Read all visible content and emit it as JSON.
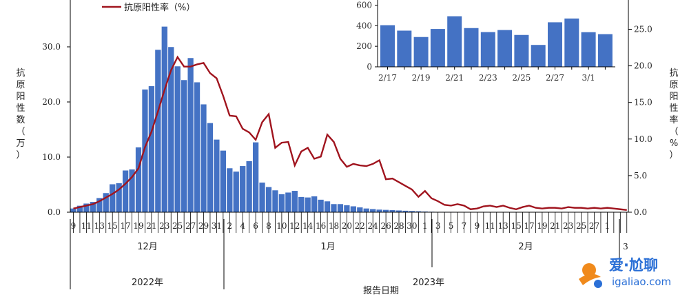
{
  "chart_data": [
    {
      "type": "bar+line",
      "legend": {
        "line_label": "抗原阳性率（%）",
        "position": "top-left"
      },
      "ylabel_left": "抗原阳性数（万）",
      "ylabel_right": "抗原阳性率（%）",
      "xlabel": "报告日期",
      "ylim_left": [
        0,
        38.5
      ],
      "ylim_right": [
        0,
        29
      ],
      "yticks_left": [
        "0.0",
        "10.0",
        "20.0",
        "30.0"
      ],
      "yticks_right": [
        "0.0",
        "5.0",
        "10.0",
        "15.0",
        "20.0",
        "25.0"
      ],
      "x_day_labels": [
        "9",
        "11",
        "13",
        "15",
        "17",
        "19",
        "21",
        "23",
        "25",
        "27",
        "29",
        "31",
        "2",
        "4",
        "6",
        "8",
        "10",
        "12",
        "14",
        "16",
        "18",
        "20",
        "22",
        "24",
        "26",
        "28",
        "30",
        "1",
        "3",
        "5",
        "7",
        "9",
        "11",
        "13",
        "15",
        "17",
        "19",
        "21",
        "23",
        "25",
        "27",
        "1",
        "3"
      ],
      "month_labels": [
        "12月",
        "1月",
        "2月"
      ],
      "year_labels": [
        "2022年",
        "2023年"
      ],
      "bar_color": "#4472C4",
      "line_color": "#A0141E",
      "bars": [
        {
          "date": "2022-12-09",
          "value": 0.7
        },
        {
          "date": "2022-12-10",
          "value": 1.2
        },
        {
          "date": "2022-12-11",
          "value": 1.6
        },
        {
          "date": "2022-12-12",
          "value": 1.9
        },
        {
          "date": "2022-12-13",
          "value": 2.6
        },
        {
          "date": "2022-12-14",
          "value": 3.5
        },
        {
          "date": "2022-12-15",
          "value": 5.1
        },
        {
          "date": "2022-12-16",
          "value": 5.3
        },
        {
          "date": "2022-12-17",
          "value": 7.6
        },
        {
          "date": "2022-12-18",
          "value": 7.8
        },
        {
          "date": "2022-12-19",
          "value": 11.8
        },
        {
          "date": "2022-12-20",
          "value": 22.3
        },
        {
          "date": "2022-12-21",
          "value": 22.9
        },
        {
          "date": "2022-12-22",
          "value": 29.5
        },
        {
          "date": "2022-12-23",
          "value": 33.7
        },
        {
          "date": "2022-12-24",
          "value": 30.0
        },
        {
          "date": "2022-12-25",
          "value": 26.5
        },
        {
          "date": "2022-12-26",
          "value": 24.0
        },
        {
          "date": "2022-12-27",
          "value": 28.0
        },
        {
          "date": "2022-12-28",
          "value": 23.6
        },
        {
          "date": "2022-12-29",
          "value": 19.6
        },
        {
          "date": "2022-12-30",
          "value": 16.2
        },
        {
          "date": "2022-12-31",
          "value": 13.2
        },
        {
          "date": "2023-01-01",
          "value": 11.2
        },
        {
          "date": "2023-01-02",
          "value": 8.0
        },
        {
          "date": "2023-01-03",
          "value": 7.4
        },
        {
          "date": "2023-01-04",
          "value": 8.4
        },
        {
          "date": "2023-01-05",
          "value": 9.3
        },
        {
          "date": "2023-01-06",
          "value": 12.7
        },
        {
          "date": "2023-01-07",
          "value": 5.4
        },
        {
          "date": "2023-01-08",
          "value": 4.6
        },
        {
          "date": "2023-01-09",
          "value": 4.0
        },
        {
          "date": "2023-01-10",
          "value": 3.3
        },
        {
          "date": "2023-01-11",
          "value": 3.6
        },
        {
          "date": "2023-01-12",
          "value": 3.9
        },
        {
          "date": "2023-01-13",
          "value": 2.8
        },
        {
          "date": "2023-01-14",
          "value": 2.7
        },
        {
          "date": "2023-01-15",
          "value": 2.9
        },
        {
          "date": "2023-01-16",
          "value": 2.3
        },
        {
          "date": "2023-01-17",
          "value": 2.0
        },
        {
          "date": "2023-01-18",
          "value": 1.5
        },
        {
          "date": "2023-01-19",
          "value": 1.5
        },
        {
          "date": "2023-01-20",
          "value": 1.3
        },
        {
          "date": "2023-01-21",
          "value": 1.1
        },
        {
          "date": "2023-01-22",
          "value": 0.9
        },
        {
          "date": "2023-01-23",
          "value": 0.7
        },
        {
          "date": "2023-01-24",
          "value": 0.6
        },
        {
          "date": "2023-01-25",
          "value": 0.5
        },
        {
          "date": "2023-01-26",
          "value": 0.45
        },
        {
          "date": "2023-01-27",
          "value": 0.4
        },
        {
          "date": "2023-01-28",
          "value": 0.35
        },
        {
          "date": "2023-01-29",
          "value": 0.3
        },
        {
          "date": "2023-01-30",
          "value": 0.25
        },
        {
          "date": "2023-01-31",
          "value": 0.2
        },
        {
          "date": "2023-02-01",
          "value": 0.15
        },
        {
          "date": "2023-02-02",
          "value": 0.12
        },
        {
          "date": "2023-02-03",
          "value": 0.1
        },
        {
          "date": "2023-02-04",
          "value": 0.08
        },
        {
          "date": "2023-02-05",
          "value": 0.07
        },
        {
          "date": "2023-02-06",
          "value": 0.06
        },
        {
          "date": "2023-02-07",
          "value": 0.05
        },
        {
          "date": "2023-02-08",
          "value": 0.05
        },
        {
          "date": "2023-02-09",
          "value": 0.05
        },
        {
          "date": "2023-02-10",
          "value": 0.04
        },
        {
          "date": "2023-02-11",
          "value": 0.04
        },
        {
          "date": "2023-02-12",
          "value": 0.04
        },
        {
          "date": "2023-02-13",
          "value": 0.04
        },
        {
          "date": "2023-02-14",
          "value": 0.04
        },
        {
          "date": "2023-02-15",
          "value": 0.03
        },
        {
          "date": "2023-02-16",
          "value": 0.03
        },
        {
          "date": "2023-02-17",
          "value": 0.04
        },
        {
          "date": "2023-02-18",
          "value": 0.035
        },
        {
          "date": "2023-02-19",
          "value": 0.03
        },
        {
          "date": "2023-02-20",
          "value": 0.037
        },
        {
          "date": "2023-02-21",
          "value": 0.05
        },
        {
          "date": "2023-02-22",
          "value": 0.038
        },
        {
          "date": "2023-02-23",
          "value": 0.034
        },
        {
          "date": "2023-02-24",
          "value": 0.036
        },
        {
          "date": "2023-02-25",
          "value": 0.032
        },
        {
          "date": "2023-02-26",
          "value": 0.022
        },
        {
          "date": "2023-02-27",
          "value": 0.044
        },
        {
          "date": "2023-02-28",
          "value": 0.048
        },
        {
          "date": "2023-03-01",
          "value": 0.034
        },
        {
          "date": "2023-03-02",
          "value": 0.032
        }
      ],
      "line": [
        {
          "date": "2022-12-09",
          "value": 0.5
        },
        {
          "date": "2022-12-10",
          "value": 0.7
        },
        {
          "date": "2022-12-11",
          "value": 0.9
        },
        {
          "date": "2022-12-12",
          "value": 1.1
        },
        {
          "date": "2022-12-13",
          "value": 1.5
        },
        {
          "date": "2022-12-14",
          "value": 2.0
        },
        {
          "date": "2022-12-15",
          "value": 2.5
        },
        {
          "date": "2022-12-16",
          "value": 3.1
        },
        {
          "date": "2022-12-17",
          "value": 3.9
        },
        {
          "date": "2022-12-18",
          "value": 4.8
        },
        {
          "date": "2022-12-19",
          "value": 6.0
        },
        {
          "date": "2022-12-20",
          "value": 8.9
        },
        {
          "date": "2022-12-21",
          "value": 11.0
        },
        {
          "date": "2022-12-22",
          "value": 13.8
        },
        {
          "date": "2022-12-23",
          "value": 16.7
        },
        {
          "date": "2022-12-24",
          "value": 19.4
        },
        {
          "date": "2022-12-25",
          "value": 21.2
        },
        {
          "date": "2022-12-26",
          "value": 19.9
        },
        {
          "date": "2022-12-27",
          "value": 19.9
        },
        {
          "date": "2022-12-28",
          "value": 20.2
        },
        {
          "date": "2022-12-29",
          "value": 20.4
        },
        {
          "date": "2022-12-30",
          "value": 19.0
        },
        {
          "date": "2022-12-31",
          "value": 18.3
        },
        {
          "date": "2023-01-01",
          "value": 15.9
        },
        {
          "date": "2023-01-02",
          "value": 13.2
        },
        {
          "date": "2023-01-03",
          "value": 13.1
        },
        {
          "date": "2023-01-04",
          "value": 11.4
        },
        {
          "date": "2023-01-05",
          "value": 10.9
        },
        {
          "date": "2023-01-06",
          "value": 9.9
        },
        {
          "date": "2023-01-07",
          "value": 12.3
        },
        {
          "date": "2023-01-08",
          "value": 13.4
        },
        {
          "date": "2023-01-09",
          "value": 8.8
        },
        {
          "date": "2023-01-10",
          "value": 9.5
        },
        {
          "date": "2023-01-11",
          "value": 9.6
        },
        {
          "date": "2023-01-12",
          "value": 6.4
        },
        {
          "date": "2023-01-13",
          "value": 8.3
        },
        {
          "date": "2023-01-14",
          "value": 8.8
        },
        {
          "date": "2023-01-15",
          "value": 7.3
        },
        {
          "date": "2023-01-16",
          "value": 7.6
        },
        {
          "date": "2023-01-17",
          "value": 10.6
        },
        {
          "date": "2023-01-18",
          "value": 9.6
        },
        {
          "date": "2023-01-19",
          "value": 7.3
        },
        {
          "date": "2023-01-20",
          "value": 6.2
        },
        {
          "date": "2023-01-21",
          "value": 6.6
        },
        {
          "date": "2023-01-22",
          "value": 6.4
        },
        {
          "date": "2023-01-23",
          "value": 6.3
        },
        {
          "date": "2023-01-24",
          "value": 6.6
        },
        {
          "date": "2023-01-25",
          "value": 7.1
        },
        {
          "date": "2023-01-26",
          "value": 4.5
        },
        {
          "date": "2023-01-27",
          "value": 4.6
        },
        {
          "date": "2023-01-28",
          "value": 4.1
        },
        {
          "date": "2023-01-29",
          "value": 3.6
        },
        {
          "date": "2023-01-30",
          "value": 3.1
        },
        {
          "date": "2023-01-31",
          "value": 2.1
        },
        {
          "date": "2023-02-01",
          "value": 2.9
        },
        {
          "date": "2023-02-02",
          "value": 1.9
        },
        {
          "date": "2023-02-03",
          "value": 1.5
        },
        {
          "date": "2023-02-04",
          "value": 1.0
        },
        {
          "date": "2023-02-05",
          "value": 0.9
        },
        {
          "date": "2023-02-06",
          "value": 1.1
        },
        {
          "date": "2023-02-07",
          "value": 0.9
        },
        {
          "date": "2023-02-08",
          "value": 0.4
        },
        {
          "date": "2023-02-09",
          "value": 0.5
        },
        {
          "date": "2023-02-10",
          "value": 0.8
        },
        {
          "date": "2023-02-11",
          "value": 0.9
        },
        {
          "date": "2023-02-12",
          "value": 0.7
        },
        {
          "date": "2023-02-13",
          "value": 0.9
        },
        {
          "date": "2023-02-14",
          "value": 0.6
        },
        {
          "date": "2023-02-15",
          "value": 0.4
        },
        {
          "date": "2023-02-16",
          "value": 0.7
        },
        {
          "date": "2023-02-17",
          "value": 0.9
        },
        {
          "date": "2023-02-18",
          "value": 0.6
        },
        {
          "date": "2023-02-19",
          "value": 0.5
        },
        {
          "date": "2023-02-20",
          "value": 0.6
        },
        {
          "date": "2023-02-21",
          "value": 0.6
        },
        {
          "date": "2023-02-22",
          "value": 0.5
        },
        {
          "date": "2023-02-23",
          "value": 0.7
        },
        {
          "date": "2023-02-24",
          "value": 0.6
        },
        {
          "date": "2023-02-25",
          "value": 0.6
        },
        {
          "date": "2023-02-26",
          "value": 0.5
        },
        {
          "date": "2023-02-27",
          "value": 0.6
        },
        {
          "date": "2023-02-28",
          "value": 0.5
        },
        {
          "date": "2023-03-01",
          "value": 0.6
        },
        {
          "date": "2023-03-02",
          "value": 0.5
        },
        {
          "date": "2023-03-03",
          "value": 0.4
        },
        {
          "date": "2023-03-04",
          "value": 0.3
        }
      ]
    },
    {
      "type": "bar",
      "categories": [
        "2/17",
        "2/18",
        "2/19",
        "2/20",
        "2/21",
        "2/22",
        "2/23",
        "2/24",
        "2/25",
        "2/26",
        "2/27",
        "2/28",
        "3/1",
        "3/2"
      ],
      "tick_labels": [
        "2/17",
        "2/19",
        "2/21",
        "2/23",
        "2/25",
        "2/27",
        "3/1"
      ],
      "values": [
        405,
        352,
        290,
        368,
        492,
        377,
        338,
        358,
        310,
        213,
        433,
        470,
        337,
        318
      ],
      "ylim": [
        0,
        650
      ],
      "yticks": [
        "0",
        "200",
        "400",
        "600"
      ],
      "bar_color": "#4472C4"
    }
  ],
  "watermark": {
    "brand": "爱·尬聊",
    "url": "igaliao.com",
    "colors": {
      "orange": "#F08A1C",
      "blue": "#2A6FD6"
    }
  }
}
